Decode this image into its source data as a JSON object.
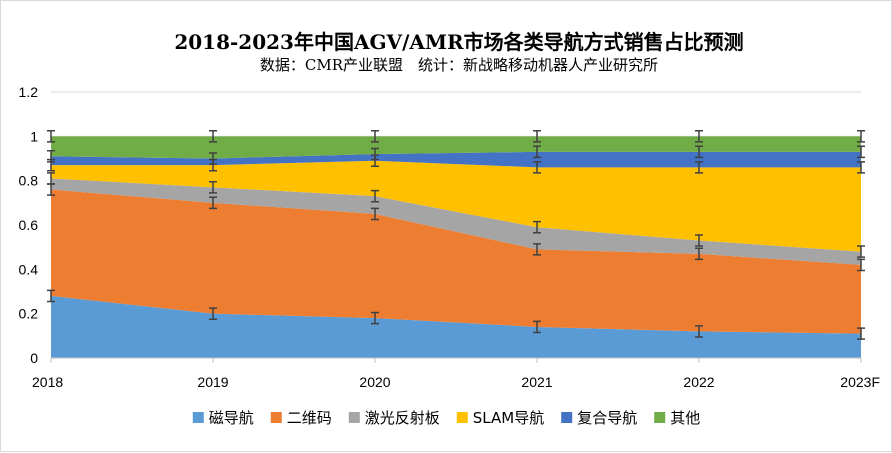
{
  "chart_data": {
    "type": "area",
    "stacked": true,
    "title": "2018-2023年中国AGV/AMR市场各类导航方式销售占比预测",
    "subtitle": "数据：CMR产业联盟　统计：新战略移动机器人产业研究所",
    "xlabel": "",
    "ylabel": "",
    "categories": [
      "2018",
      "2019",
      "2020",
      "2021",
      "2022",
      "2023F"
    ],
    "ylim": [
      0,
      1.2
    ],
    "yticks": [
      "0",
      "0.2",
      "0.4",
      "0.6",
      "0.8",
      "1",
      "1.2"
    ],
    "grid": true,
    "legend_position": "bottom",
    "error_bars": true,
    "series": [
      {
        "name": "磁导航",
        "color": "#5b9bd5",
        "values": [
          0.28,
          0.2,
          0.18,
          0.14,
          0.12,
          0.11
        ]
      },
      {
        "name": "二维码",
        "color": "#ed7d31",
        "values": [
          0.48,
          0.5,
          0.47,
          0.35,
          0.35,
          0.31
        ]
      },
      {
        "name": "激光反射板",
        "color": "#a5a5a5",
        "values": [
          0.05,
          0.07,
          0.08,
          0.1,
          0.06,
          0.06
        ]
      },
      {
        "name": "SLAM导航",
        "color": "#ffc000",
        "values": [
          0.06,
          0.1,
          0.16,
          0.27,
          0.33,
          0.38
        ]
      },
      {
        "name": "复合导航",
        "color": "#4472c4",
        "values": [
          0.04,
          0.03,
          0.03,
          0.07,
          0.07,
          0.07
        ]
      },
      {
        "name": "其他",
        "color": "#70ad47",
        "values": [
          0.09,
          0.1,
          0.08,
          0.07,
          0.07,
          0.07
        ]
      }
    ]
  }
}
